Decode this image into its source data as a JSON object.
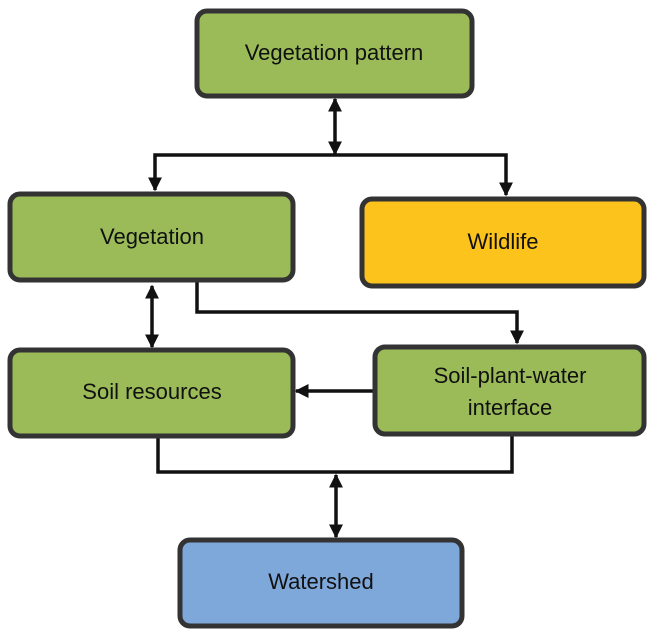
{
  "nodes": [
    {
      "label": "Vegetation pattern"
    },
    {
      "label": "Vegetation"
    },
    {
      "label": "Wildlife"
    },
    {
      "label": "Soil resources"
    },
    {
      "lines": [
        "Soil-plant-water",
        "interface"
      ]
    },
    {
      "label": "Watershed"
    }
  ]
}
